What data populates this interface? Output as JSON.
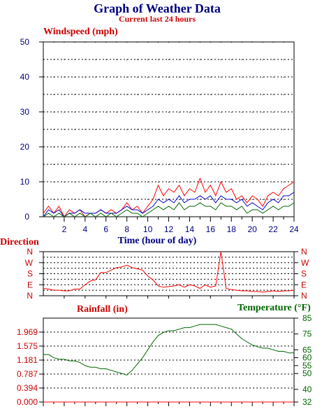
{
  "title": "Graph of Weather Data",
  "subtitle": "Current last 24 hours",
  "colors": {
    "title": "#000080",
    "red": "#ff0000",
    "dark_red": "#cc0000",
    "blue": "#0000cc",
    "navy": "#000080",
    "green": "#006600",
    "grid": "#000000"
  },
  "panels": {
    "wind": {
      "label": "Windspeed (mph)",
      "x_label": "Time (hour of day)",
      "y_ticks": [
        "0",
        "10",
        "20",
        "30",
        "40",
        "50"
      ],
      "x_ticks": [
        "2",
        "4",
        "6",
        "8",
        "10",
        "12",
        "14",
        "16",
        "18",
        "20",
        "22",
        "24"
      ]
    },
    "direction": {
      "label": "Direction",
      "y_ticks": [
        "N",
        "E",
        "S",
        "W",
        "N"
      ],
      "right_ticks": [
        "N",
        "E",
        "S",
        "W",
        "N"
      ]
    },
    "rain_temp": {
      "left_label": "Rainfall (in)",
      "right_label": "Temperature (°F)",
      "left_ticks": [
        "0.000",
        "0.394",
        "0.787",
        "1.181",
        "1.575",
        "1.969"
      ],
      "right_ticks": [
        "32",
        "40",
        "50",
        "55",
        "60",
        "65",
        "75",
        "85"
      ]
    }
  },
  "chart_data": [
    {
      "type": "line",
      "title": "Windspeed (mph)",
      "xlabel": "Time (hour of day)",
      "ylabel": "Windspeed (mph)",
      "xlim": [
        0,
        24
      ],
      "ylim": [
        0,
        50
      ],
      "grid": true,
      "x": [
        0,
        0.5,
        1,
        1.5,
        2,
        2.5,
        3,
        3.5,
        4,
        4.5,
        5,
        5.5,
        6,
        6.5,
        7,
        7.5,
        8,
        8.5,
        9,
        9.5,
        10,
        10.5,
        11,
        11.5,
        12,
        12.5,
        13,
        13.5,
        14,
        14.5,
        15,
        15.5,
        16,
        16.5,
        17,
        17.5,
        18,
        18.5,
        19,
        19.5,
        20,
        20.5,
        21,
        21.5,
        22,
        22.5,
        23,
        23.5,
        24
      ],
      "series": [
        {
          "color": "#ff0000",
          "values": [
            1,
            3,
            1,
            3,
            0,
            2,
            1,
            2,
            0,
            1,
            1,
            2,
            1,
            2,
            1,
            2,
            4,
            2,
            3,
            1,
            3,
            5,
            9,
            6,
            8,
            7,
            9,
            6,
            8,
            7,
            11,
            7,
            9,
            6,
            10,
            7,
            8,
            5,
            6,
            4,
            6,
            5,
            3,
            6,
            7,
            6,
            8,
            9,
            10
          ]
        },
        {
          "color": "#0000cc",
          "values": [
            0,
            2,
            1,
            2,
            0,
            1,
            1,
            2,
            1,
            1,
            1,
            2,
            1,
            1,
            1,
            2,
            3,
            2,
            2,
            1,
            2,
            3,
            5,
            4,
            5,
            4,
            6,
            4,
            5,
            5,
            6,
            5,
            6,
            4,
            6,
            5,
            5,
            4,
            5,
            3,
            4,
            3,
            2,
            4,
            5,
            4,
            6,
            6,
            7
          ]
        },
        {
          "color": "#006600",
          "values": [
            0,
            1,
            0,
            1,
            0,
            1,
            0,
            1,
            0,
            1,
            0,
            1,
            0,
            1,
            0,
            1,
            2,
            1,
            1,
            0,
            1,
            2,
            3,
            2,
            3,
            2,
            4,
            2,
            3,
            3,
            4,
            3,
            3,
            2,
            4,
            3,
            3,
            2,
            3,
            1,
            2,
            2,
            1,
            2,
            3,
            2,
            3,
            3,
            4
          ]
        }
      ]
    },
    {
      "type": "line",
      "ylabel": "Direction",
      "xlim": [
        0,
        24
      ],
      "y_categories": [
        "N",
        "E",
        "S",
        "W",
        "N"
      ],
      "ylim": [
        0,
        360
      ],
      "x": [
        0,
        0.5,
        1,
        1.5,
        2,
        2.5,
        3,
        3.5,
        4,
        4.5,
        5,
        5.5,
        6,
        6.5,
        7,
        7.5,
        8,
        8.5,
        9,
        9.5,
        10,
        10.5,
        11,
        11.5,
        12,
        12.5,
        13,
        13.5,
        14,
        14.5,
        15,
        15.5,
        16,
        16.5,
        17,
        17.5,
        18,
        18.5,
        19,
        19.5,
        20,
        20.5,
        21,
        21.5,
        22,
        22.5,
        23,
        23.5,
        24
      ],
      "series": [
        {
          "color": "#ff0000",
          "values": [
            60,
            55,
            45,
            45,
            40,
            40,
            55,
            55,
            90,
            120,
            130,
            190,
            190,
            210,
            230,
            235,
            250,
            230,
            220,
            210,
            160,
            130,
            80,
            70,
            75,
            80,
            90,
            70,
            90,
            80,
            60,
            90,
            70,
            80,
            360,
            60,
            50,
            45,
            40,
            40,
            35,
            35,
            30,
            35,
            40,
            35,
            40,
            40,
            45
          ]
        }
      ]
    },
    {
      "type": "line",
      "xlim": [
        0,
        24
      ],
      "series": [
        {
          "name": "Rainfall (in)",
          "color": "#ff0000",
          "ylim": [
            0,
            1.969
          ],
          "values": [
            0,
            0,
            0,
            0,
            0,
            0,
            0,
            0,
            0,
            0,
            0,
            0,
            0,
            0,
            0,
            0,
            0,
            0,
            0,
            0,
            0,
            0,
            0,
            0,
            0,
            0,
            0,
            0,
            0,
            0,
            0,
            0,
            0,
            0,
            0,
            0,
            0,
            0,
            0,
            0,
            0,
            0,
            0,
            0,
            0,
            0,
            0,
            0,
            0
          ]
        },
        {
          "name": "Temperature (°F)",
          "color": "#006600",
          "ylim": [
            32,
            85
          ],
          "values": [
            62,
            62,
            60,
            59,
            59,
            58,
            58,
            57,
            55,
            54,
            54,
            53,
            53,
            52,
            51,
            50,
            49,
            52,
            56,
            60,
            65,
            70,
            74,
            76,
            77,
            77,
            78,
            79,
            79,
            80,
            81,
            81,
            81,
            81,
            80,
            79,
            78,
            75,
            72,
            70,
            68,
            67,
            66,
            66,
            65,
            64,
            64,
            63,
            63
          ]
        }
      ]
    }
  ]
}
